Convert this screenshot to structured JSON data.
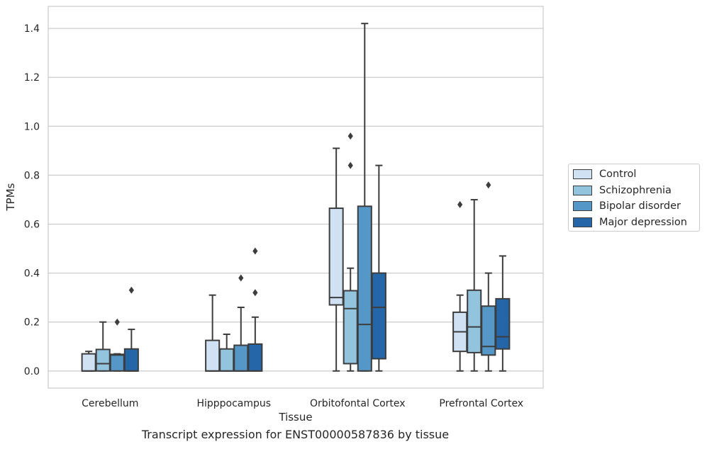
{
  "caption": "Transcript expression for ENST00000587836 by tissue",
  "chart_data": {
    "type": "boxplot",
    "title": "",
    "xlabel": "Tissue",
    "ylabel": "TPMs",
    "ylim": [
      -0.07,
      1.49
    ],
    "yticks": [
      "0.0",
      "0.2",
      "0.4",
      "0.6",
      "0.8",
      "1.0",
      "1.2",
      "1.4"
    ],
    "ytick_values": [
      0,
      0.2,
      0.4,
      0.6,
      0.8,
      1.0,
      1.2,
      1.4
    ],
    "grid": "horizontal",
    "legend_position": "right",
    "categories": [
      "Cerebellum",
      "Hipppocampus",
      "Orbitofontal Cortex",
      "Prefrontal Cortex"
    ],
    "series": [
      {
        "name": "Control",
        "color": "#cfe1f2",
        "boxes": [
          {
            "whislo": 0.0,
            "q1": 0.0,
            "med": 0.0,
            "q3": 0.07,
            "whishi": 0.08,
            "fliers": []
          },
          {
            "whislo": 0.0,
            "q1": 0.0,
            "med": 0.0,
            "q3": 0.125,
            "whishi": 0.31,
            "fliers": []
          },
          {
            "whislo": 0.0,
            "q1": 0.27,
            "med": 0.3,
            "q3": 0.665,
            "whishi": 0.91,
            "fliers": []
          },
          {
            "whislo": 0.0,
            "q1": 0.08,
            "med": 0.16,
            "q3": 0.24,
            "whishi": 0.31,
            "fliers": [
              0.68
            ]
          }
        ]
      },
      {
        "name": "Schizophrenia",
        "color": "#93c4de",
        "boxes": [
          {
            "whislo": 0.0,
            "q1": 0.0,
            "med": 0.03,
            "q3": 0.088,
            "whishi": 0.2,
            "fliers": []
          },
          {
            "whislo": 0.0,
            "q1": 0.0,
            "med": 0.0,
            "q3": 0.09,
            "whishi": 0.15,
            "fliers": []
          },
          {
            "whislo": 0.0,
            "q1": 0.03,
            "med": 0.255,
            "q3": 0.328,
            "whishi": 0.42,
            "fliers": [
              0.84,
              0.96
            ]
          },
          {
            "whislo": 0.0,
            "q1": 0.075,
            "med": 0.18,
            "q3": 0.33,
            "whishi": 0.7,
            "fliers": []
          }
        ]
      },
      {
        "name": "Bipolar disorder",
        "color": "#5597c6",
        "boxes": [
          {
            "whislo": 0.0,
            "q1": 0.0,
            "med": 0.065,
            "q3": 0.068,
            "whishi": 0.07,
            "fliers": [
              0.2
            ]
          },
          {
            "whislo": 0.0,
            "q1": 0.0,
            "med": 0.0,
            "q3": 0.105,
            "whishi": 0.26,
            "fliers": [
              0.38
            ]
          },
          {
            "whislo": 0.0,
            "q1": 0.0,
            "med": 0.19,
            "q3": 0.673,
            "whishi": 1.42,
            "fliers": []
          },
          {
            "whislo": 0.0,
            "q1": 0.065,
            "med": 0.1,
            "q3": 0.265,
            "whishi": 0.4,
            "fliers": [
              0.76
            ]
          }
        ]
      },
      {
        "name": "Major depression",
        "color": "#2466a8",
        "boxes": [
          {
            "whislo": 0.0,
            "q1": 0.0,
            "med": 0.0,
            "q3": 0.09,
            "whishi": 0.17,
            "fliers": [
              0.33
            ]
          },
          {
            "whislo": 0.0,
            "q1": 0.0,
            "med": 0.0,
            "q3": 0.11,
            "whishi": 0.22,
            "fliers": [
              0.32,
              0.49
            ]
          },
          {
            "whislo": 0.0,
            "q1": 0.05,
            "med": 0.26,
            "q3": 0.4,
            "whishi": 0.84,
            "fliers": []
          },
          {
            "whislo": 0.0,
            "q1": 0.09,
            "med": 0.14,
            "q3": 0.295,
            "whishi": 0.47,
            "fliers": []
          }
        ]
      }
    ]
  }
}
